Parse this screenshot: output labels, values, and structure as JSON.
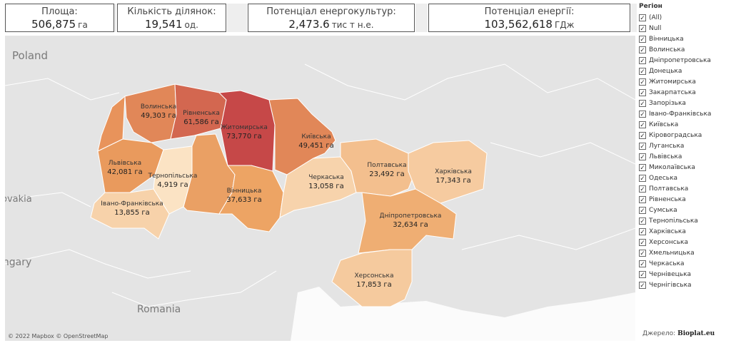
{
  "kpis": [
    {
      "label": "Площа:",
      "value": "506,875",
      "unit": "га"
    },
    {
      "label": "Кількість ділянок:",
      "value": "19,541",
      "unit": "од."
    },
    {
      "label": "Потенціал енергокультур:",
      "value": "2,473.6",
      "unit": "тис т н.е."
    },
    {
      "label": "Потенціал енергії:",
      "value": "103,562,618",
      "unit": "ГДж"
    }
  ],
  "map": {
    "basemap_labels": [
      "Poland",
      "ovakia",
      "ungary",
      "Romania"
    ],
    "attribution": "© 2022 Mapbox © OpenStreetMap",
    "regions": [
      {
        "name": "Волинська",
        "value": 49303,
        "label": "49,303 га"
      },
      {
        "name": "Рівненська",
        "value": 61586,
        "label": "61,586 га"
      },
      {
        "name": "Житомирська",
        "value": 73770,
        "label": "73,770 га"
      },
      {
        "name": "Київська",
        "value": 49451,
        "label": "49,451 га"
      },
      {
        "name": "Львівська",
        "value": 42081,
        "label": "42,081 га"
      },
      {
        "name": "Тернопільська",
        "value": 4919,
        "label": "4,919 га"
      },
      {
        "name": "Івано-Франківська",
        "value": 13855,
        "label": "13,855 га"
      },
      {
        "name": "Вінницька",
        "value": 37633,
        "label": "37,633 га"
      },
      {
        "name": "Черкаська",
        "value": 13058,
        "label": "13,058 га"
      },
      {
        "name": "Полтавська",
        "value": 23492,
        "label": "23,492 га"
      },
      {
        "name": "Харківська",
        "value": 17343,
        "label": "17,343 га"
      },
      {
        "name": "Дніпропетровська",
        "value": 32634,
        "label": "32,634 га"
      },
      {
        "name": "Херсонська",
        "value": 17853,
        "label": "17,853 га"
      }
    ]
  },
  "filter": {
    "title": "Регіон",
    "items": [
      "(All)",
      "Null",
      "Вінницька",
      "Волинська",
      "Дніпропетровська",
      "Донецька",
      "Житомирська",
      "Закарпатська",
      "Запорізька",
      "Івано-Франківська",
      "Київська",
      "Кіровоградська",
      "Луганська",
      "Львівська",
      "Миколаївська",
      "Одеська",
      "Полтавська",
      "Рівненська",
      "Сумська",
      "Тернопільська",
      "Харківська",
      "Херсонська",
      "Хмельницька",
      "Черкаська",
      "Чернівецька",
      "Чернігівська"
    ]
  },
  "source": {
    "label": "Джерело:",
    "name": "Bioplat.eu"
  }
}
